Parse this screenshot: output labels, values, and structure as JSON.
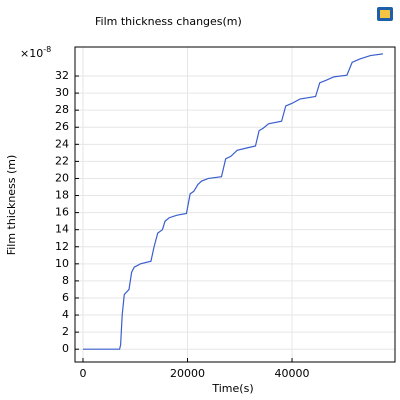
{
  "chart_data": {
    "type": "line",
    "title": "Film thickness changes(m)",
    "xlabel": "Time(s)",
    "ylabel": "Film thickness (m)",
    "y_scale_label": "×10",
    "y_scale_exponent": "-8",
    "xlim": [
      -1530,
      59700
    ],
    "ylim": [
      -1.5,
      35.4
    ],
    "xticks": [
      0,
      20000,
      40000
    ],
    "yticks": [
      0,
      2,
      4,
      6,
      8,
      10,
      12,
      14,
      16,
      18,
      20,
      22,
      24,
      26,
      28,
      30,
      32
    ],
    "grid": true,
    "series": [
      {
        "color": "#3a5fcd",
        "x": [
          0,
          7000,
          7200,
          7500,
          7900,
          8800,
          9300,
          9800,
          11000,
          13000,
          13600,
          14300,
          15200,
          15700,
          16500,
          18000,
          19800,
          20500,
          21200,
          22000,
          22700,
          24000,
          26500,
          27300,
          28300,
          29500,
          31500,
          33000,
          33700,
          34500,
          35500,
          38000,
          38800,
          40000,
          41500,
          44500,
          45300,
          46500,
          48000,
          50500,
          51500,
          53000,
          55000,
          57400
        ],
        "values": [
          0,
          0,
          0.5,
          4,
          6.4,
          7.0,
          9.0,
          9.6,
          10.0,
          10.3,
          12.0,
          13.6,
          14.0,
          15.0,
          15.4,
          15.7,
          15.9,
          18.2,
          18.5,
          19.3,
          19.7,
          20.0,
          20.2,
          22.3,
          22.6,
          23.3,
          23.6,
          23.8,
          25.6,
          25.9,
          26.4,
          26.7,
          28.5,
          28.8,
          29.3,
          29.6,
          31.2,
          31.5,
          31.9,
          32.1,
          33.6,
          34.0,
          34.4,
          34.6
        ]
      }
    ]
  }
}
